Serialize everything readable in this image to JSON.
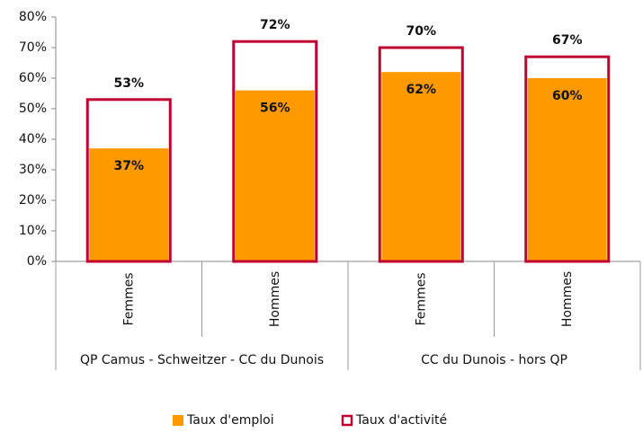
{
  "chart_data": {
    "type": "bar",
    "categories": [
      "Femmes",
      "Hommes",
      "Femmes",
      "Hommes"
    ],
    "groups": [
      "QP Camus - Schweitzer - CC du Dunois",
      "CC du Dunois - hors QP"
    ],
    "series": [
      {
        "name": "Taux d'emploi",
        "color": "#ff9900",
        "values": [
          37,
          56,
          62,
          60
        ],
        "value_labels": [
          "37%",
          "56%",
          "62%",
          "60%"
        ]
      },
      {
        "name": "Taux d'activité",
        "color": "#c00030",
        "outline": true,
        "values": [
          53,
          72,
          70,
          67
        ],
        "value_labels": [
          "53%",
          "72%",
          "70%",
          "67%"
        ]
      }
    ],
    "ylim": [
      0,
      80
    ],
    "yticks": [
      {
        "value": 0,
        "label": "0%"
      },
      {
        "value": 10,
        "label": "10%"
      },
      {
        "value": 20,
        "label": "20%"
      },
      {
        "value": 30,
        "label": "30%"
      },
      {
        "value": 40,
        "label": "40%"
      },
      {
        "value": 50,
        "label": "50%"
      },
      {
        "value": 60,
        "label": "60%"
      },
      {
        "value": 70,
        "label": "70%"
      },
      {
        "value": 80,
        "label": "80%"
      }
    ],
    "legend": "bottom"
  }
}
